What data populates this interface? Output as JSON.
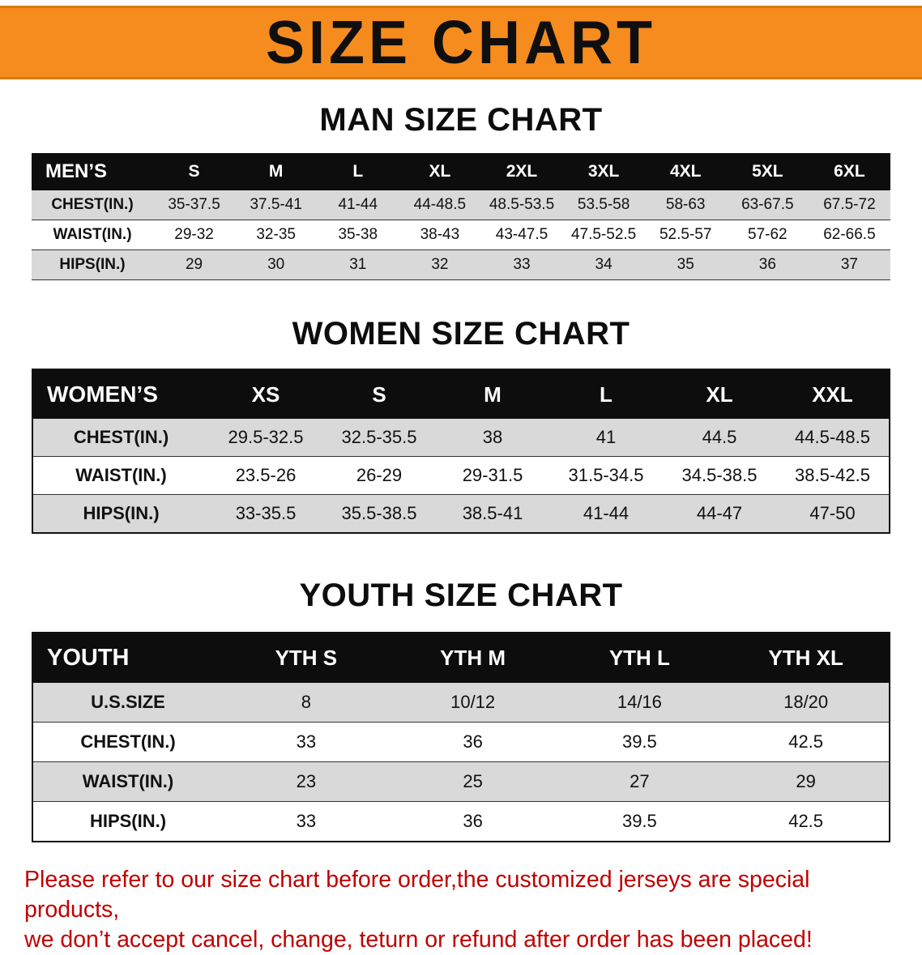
{
  "banner": {
    "title": "SIZE CHART",
    "bg_color": "#F68C1E",
    "text_color": "#0F0F0F"
  },
  "sections": [
    {
      "heading": "MAN SIZE CHART",
      "table": {
        "header": [
          "MEN’S",
          "S",
          "M",
          "L",
          "XL",
          "2XL",
          "3XL",
          "4XL",
          "5XL",
          "6XL"
        ],
        "rows": [
          [
            "CHEST(IN.)",
            "35-37.5",
            "37.5-41",
            "41-44",
            "44-48.5",
            "48.5-53.5",
            "53.5-58",
            "58-63",
            "63-67.5",
            "67.5-72"
          ],
          [
            "WAIST(IN.)",
            "29-32",
            "32-35",
            "35-38",
            "38-43",
            "43-47.5",
            "47.5-52.5",
            "52.5-57",
            "57-62",
            "62-66.5"
          ],
          [
            "HIPS(IN.)",
            "29",
            "30",
            "31",
            "32",
            "33",
            "34",
            "35",
            "36",
            "37"
          ]
        ]
      }
    },
    {
      "heading": "WOMEN SIZE CHART",
      "table": {
        "header": [
          "WOMEN’S",
          "XS",
          "S",
          "M",
          "L",
          "XL",
          "XXL"
        ],
        "rows": [
          [
            "CHEST(IN.)",
            "29.5-32.5",
            "32.5-35.5",
            "38",
            "41",
            "44.5",
            "44.5-48.5"
          ],
          [
            "WAIST(IN.)",
            "23.5-26",
            "26-29",
            "29-31.5",
            "31.5-34.5",
            "34.5-38.5",
            "38.5-42.5"
          ],
          [
            "HIPS(IN.)",
            "33-35.5",
            "35.5-38.5",
            "38.5-41",
            "41-44",
            "44-47",
            "47-50"
          ]
        ]
      }
    },
    {
      "heading": "YOUTH SIZE CHART",
      "table": {
        "header": [
          "YOUTH",
          "YTH S",
          "YTH M",
          "YTH L",
          "YTH XL"
        ],
        "rows": [
          [
            "U.S.SIZE",
            "8",
            "10/12",
            "14/16",
            "18/20"
          ],
          [
            "CHEST(IN.)",
            "33",
            "36",
            "39.5",
            "42.5"
          ],
          [
            "WAIST(IN.)",
            "23",
            "25",
            "27",
            "29"
          ],
          [
            "HIPS(IN.)",
            "33",
            "36",
            "39.5",
            "42.5"
          ]
        ]
      }
    }
  ],
  "disclaimer": {
    "color": "#C00000",
    "lines": [
      "Please refer to our size chart before order,the customized jerseys are special products,",
      "we don’t accept cancel, change, teturn or refund after order has been placed!"
    ]
  }
}
